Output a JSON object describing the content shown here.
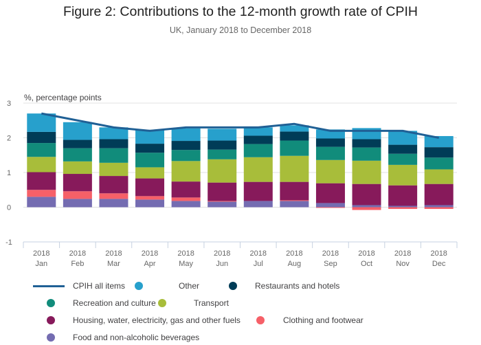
{
  "chart_data": {
    "type": "bar",
    "stacked": true,
    "title": "Figure 2: Contributions to the 12-month growth rate of CPIH",
    "subtitle": "UK, January 2018 to December 2018",
    "ylabel": "%, percentage points",
    "xlabel": "",
    "ylim": [
      -1,
      3
    ],
    "yticks": [
      3,
      2,
      1,
      0,
      -1
    ],
    "grid": true,
    "legend_position": "bottom",
    "categories": [
      [
        "2018",
        "Jan"
      ],
      [
        "2018",
        "Feb"
      ],
      [
        "2018",
        "Mar"
      ],
      [
        "2018",
        "Apr"
      ],
      [
        "2018",
        "May"
      ],
      [
        "2018",
        "Jun"
      ],
      [
        "2018",
        "Jul"
      ],
      [
        "2018",
        "Aug"
      ],
      [
        "2018",
        "Sep"
      ],
      [
        "2018",
        "Oct"
      ],
      [
        "2018",
        "Nov"
      ],
      [
        "2018",
        "Dec"
      ]
    ],
    "series": [
      {
        "name": "Food and non-alcoholic beverages",
        "color": "#746cb1",
        "values": [
          0.3,
          0.24,
          0.24,
          0.22,
          0.18,
          0.16,
          0.18,
          0.18,
          0.12,
          0.06,
          0.04,
          0.06
        ]
      },
      {
        "name": "Clothing and footwear",
        "color": "#f66068",
        "values": [
          0.2,
          0.22,
          0.16,
          0.1,
          0.1,
          0.02,
          0.0,
          0.02,
          -0.02,
          -0.08,
          -0.05,
          -0.05
        ]
      },
      {
        "name": "Housing, water, electricity, gas and other fuels",
        "color": "#871a5b",
        "values": [
          0.51,
          0.5,
          0.5,
          0.51,
          0.46,
          0.53,
          0.55,
          0.53,
          0.57,
          0.61,
          0.59,
          0.61
        ]
      },
      {
        "name": "Transport",
        "color": "#a8bd3a",
        "values": [
          0.44,
          0.36,
          0.38,
          0.32,
          0.59,
          0.67,
          0.71,
          0.75,
          0.67,
          0.67,
          0.59,
          0.42
        ]
      },
      {
        "name": "Recreation and culture",
        "color": "#118c7b",
        "values": [
          0.4,
          0.38,
          0.42,
          0.42,
          0.32,
          0.28,
          0.38,
          0.44,
          0.38,
          0.38,
          0.32,
          0.34
        ]
      },
      {
        "name": "Restaurants and hotels",
        "color": "#003c57",
        "values": [
          0.32,
          0.24,
          0.26,
          0.26,
          0.26,
          0.26,
          0.24,
          0.26,
          0.24,
          0.24,
          0.26,
          0.3
        ]
      },
      {
        "name": "Other",
        "color": "#27a0cc",
        "values": [
          0.53,
          0.51,
          0.34,
          0.4,
          0.36,
          0.34,
          0.24,
          0.18,
          0.26,
          0.32,
          0.4,
          0.32
        ]
      }
    ],
    "line_series": {
      "name": "CPIH all items",
      "color": "#206095",
      "values": [
        2.7,
        2.5,
        2.3,
        2.2,
        2.3,
        2.3,
        2.3,
        2.4,
        2.2,
        2.2,
        2.2,
        2.0
      ]
    },
    "legend": [
      {
        "label": "CPIH all items",
        "kind": "line",
        "color": "#206095"
      },
      {
        "label": "Other",
        "kind": "dot",
        "color": "#27a0cc"
      },
      {
        "label": "Restaurants and hotels",
        "kind": "dot",
        "color": "#003c57"
      },
      {
        "label": "Recreation and culture",
        "kind": "dot",
        "color": "#118c7b"
      },
      {
        "label": "Transport",
        "kind": "dot",
        "color": "#a8bd3a"
      },
      {
        "label": "Housing, water, electricity, gas and other fuels",
        "kind": "dot",
        "color": "#871a5b"
      },
      {
        "label": "Clothing and footwear",
        "kind": "dot",
        "color": "#f66068"
      },
      {
        "label": "Food and non-alcoholic beverages",
        "kind": "dot",
        "color": "#746cb1"
      }
    ]
  }
}
